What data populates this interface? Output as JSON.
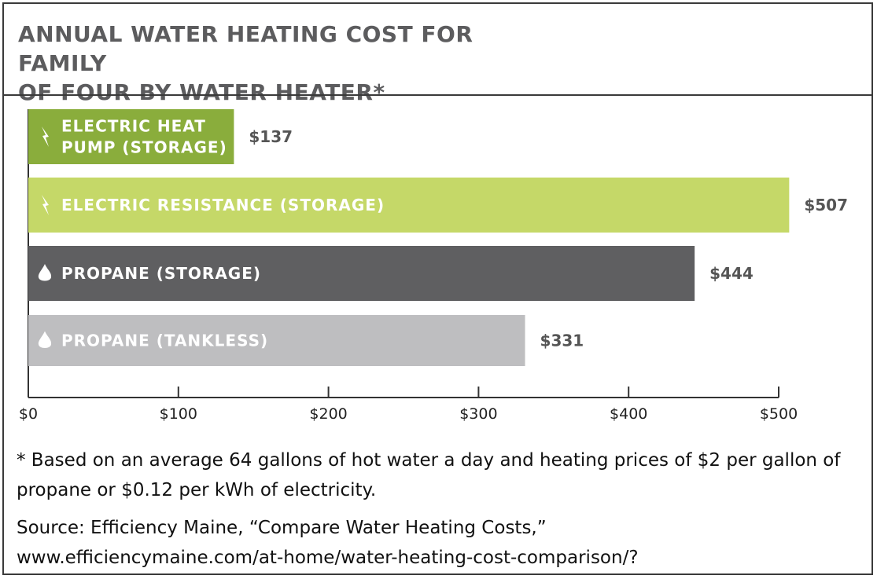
{
  "title_line1": "ANNUAL WATER HEATING COST FOR FAMILY",
  "title_line2": "OF FOUR BY WATER HEATER*",
  "footnote": "* Based on an average 64 gallons of hot water a day and heating prices of $2 per gallon of propane or $0.12 per kWh of electricity.",
  "source_line1": "Source: Efficiency Maine, “Compare Water Heating Costs,”",
  "source_line2": "www.efficiencymaine.com/at-home/water-heating-cost-comparison/?",
  "chart_data": {
    "type": "bar",
    "orientation": "horizontal",
    "title": "ANNUAL WATER HEATING COST FOR FAMILY OF FOUR BY WATER HEATER*",
    "categories": [
      "ELECTRIC HEAT PUMP (STORAGE)",
      "ELECTRIC RESISTANCE (STORAGE)",
      "PROPANE (STORAGE)",
      "PROPANE (TANKLESS)"
    ],
    "category_lines": [
      [
        "ELECTRIC HEAT",
        "PUMP (STORAGE)"
      ],
      [
        "ELECTRIC RESISTANCE (STORAGE)"
      ],
      [
        "PROPANE (STORAGE)"
      ],
      [
        "PROPANE (TANKLESS)"
      ]
    ],
    "values": [
      137,
      507,
      444,
      331
    ],
    "value_labels": [
      "$137",
      "$507",
      "$444",
      "$331"
    ],
    "icons": [
      "lightning-icon",
      "lightning-icon",
      "flame-icon",
      "flame-icon"
    ],
    "colors": [
      "#8aad3c",
      "#c5d868",
      "#5f5f61",
      "#bebec0"
    ],
    "xlim": [
      0,
      500
    ],
    "x_ticks": [
      0,
      100,
      200,
      300,
      400,
      500
    ],
    "x_tick_labels": [
      "$0",
      "$100",
      "$200",
      "$300",
      "$400",
      "$500"
    ],
    "xlabel": "",
    "ylabel": "",
    "grid": false,
    "legend": "none"
  }
}
